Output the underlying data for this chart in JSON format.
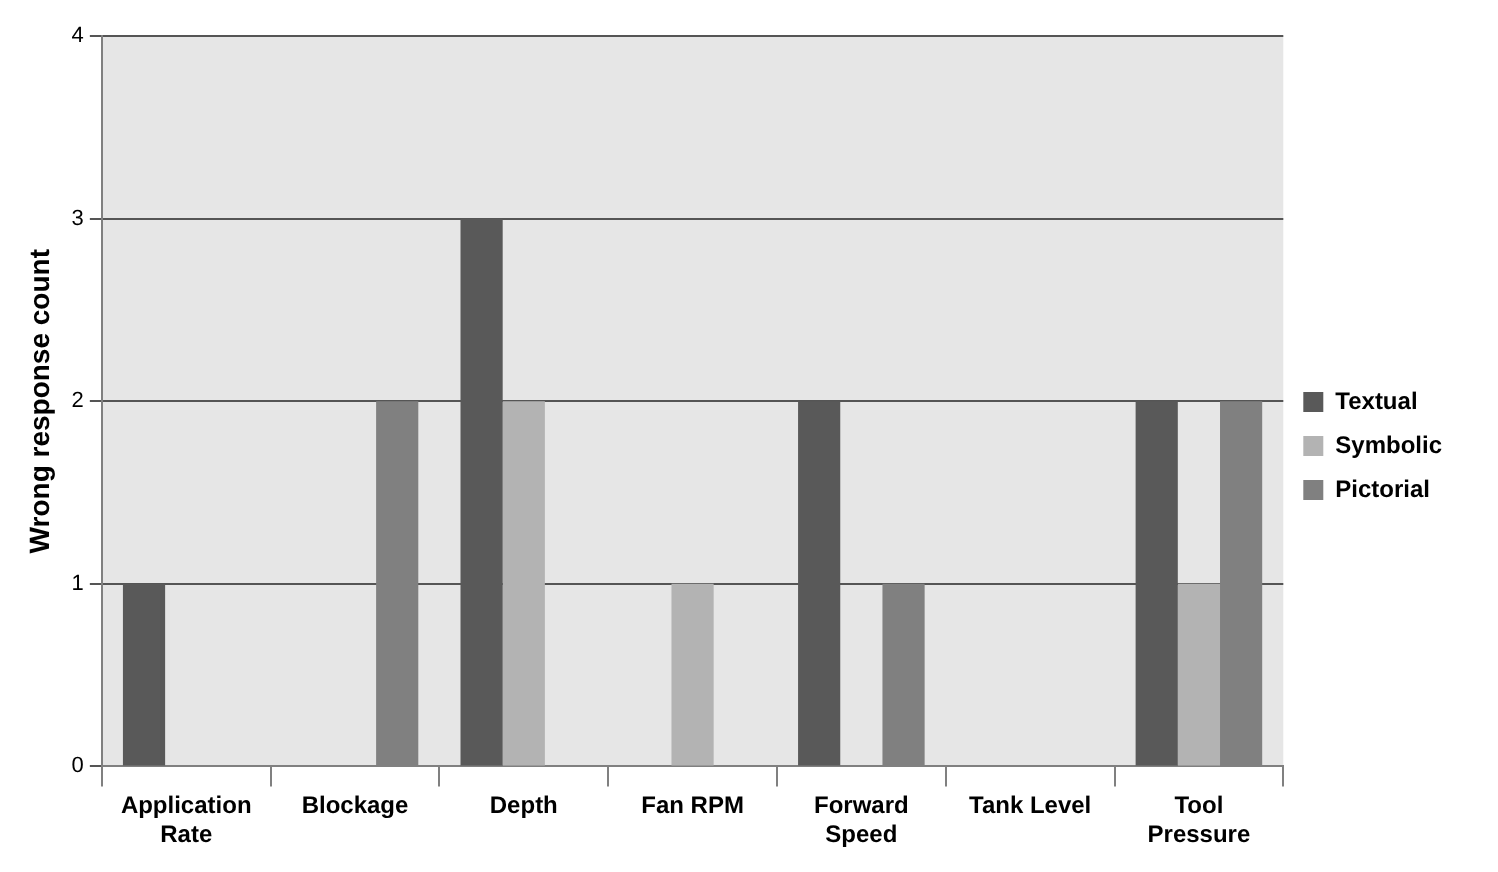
{
  "chart_data": {
    "type": "bar",
    "ylabel": "Wrong response count",
    "categories": [
      "Application\nRate",
      "Blockage",
      "Depth",
      "Fan RPM",
      "Forward\nSpeed",
      "Tank Level",
      "Tool\nPressure"
    ],
    "series": [
      {
        "name": "Textual",
        "color": "#595959",
        "values": [
          1,
          0,
          3,
          0,
          2,
          0,
          2
        ]
      },
      {
        "name": "Symbolic",
        "color": "#b3b3b3",
        "values": [
          0,
          0,
          2,
          1,
          0,
          0,
          1
        ]
      },
      {
        "name": "Pictorial",
        "color": "#808080",
        "values": [
          0,
          2,
          0,
          0,
          1,
          0,
          2
        ]
      }
    ],
    "ylim": [
      0,
      4
    ],
    "yticks": [
      0,
      1,
      2,
      3,
      4
    ],
    "grid": "y",
    "legend": "right"
  }
}
